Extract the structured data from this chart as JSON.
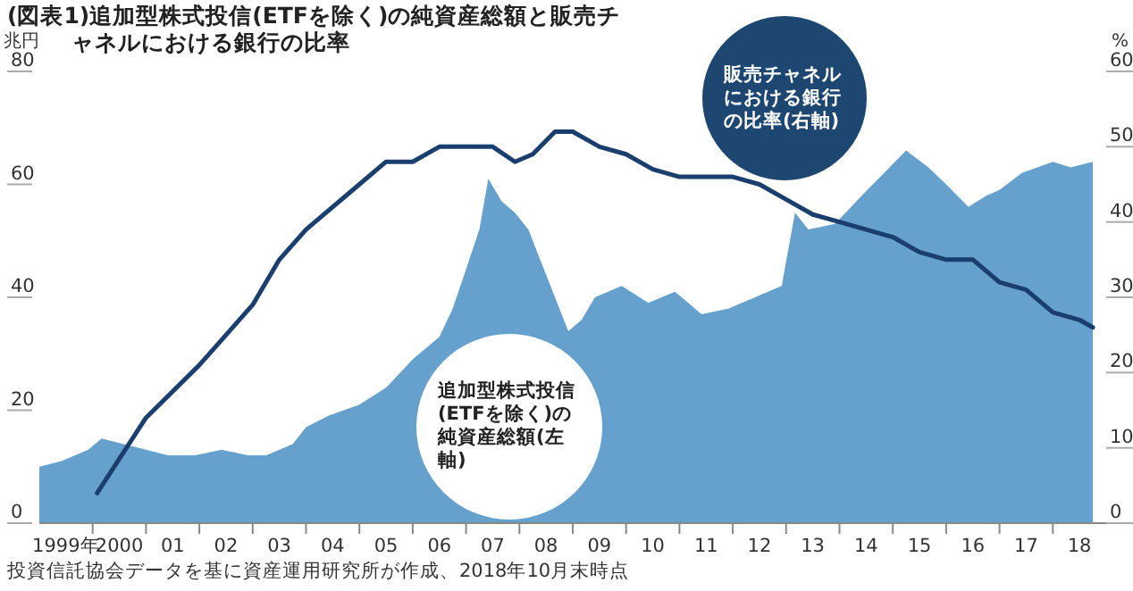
{
  "chart_data": {
    "type": "area",
    "title": "(図表1)追加型株式投信(ETFを除く)の純資産総額と販売チャネルにおける銀行の比率",
    "ylabel": "兆円",
    "y2label": "%",
    "annotations": [
      "投資信託協会データを基に資産運用研究所が作成、2018年10月末時点"
    ],
    "xlim": [
      "1999-01",
      "2019-01"
    ],
    "xticks": [
      {
        "value": "1999-07",
        "label": "1999年"
      },
      {
        "value": "2000-01",
        "label": null
      },
      {
        "value": "2000-07",
        "label": "2000"
      },
      {
        "value": "2001-01",
        "label": null
      },
      {
        "value": "2001-07",
        "label": "01"
      },
      {
        "value": "2002-01",
        "label": null
      },
      {
        "value": "2002-07",
        "label": "02"
      },
      {
        "value": "2003-01",
        "label": null
      },
      {
        "value": "2003-07",
        "label": "03"
      },
      {
        "value": "2004-01",
        "label": null
      },
      {
        "value": "2004-07",
        "label": "04"
      },
      {
        "value": "2005-01",
        "label": null
      },
      {
        "value": "2005-07",
        "label": "05"
      },
      {
        "value": "2006-01",
        "label": null
      },
      {
        "value": "2006-07",
        "label": "06"
      },
      {
        "value": "2007-01",
        "label": null
      },
      {
        "value": "2007-07",
        "label": "07"
      },
      {
        "value": "2008-01",
        "label": null
      },
      {
        "value": "2008-07",
        "label": "08"
      },
      {
        "value": "2009-01",
        "label": null
      },
      {
        "value": "2009-07",
        "label": "09"
      },
      {
        "value": "2010-01",
        "label": null
      },
      {
        "value": "2010-07",
        "label": "10"
      },
      {
        "value": "2011-01",
        "label": null
      },
      {
        "value": "2011-07",
        "label": "11"
      },
      {
        "value": "2012-01",
        "label": null
      },
      {
        "value": "2012-07",
        "label": "12"
      },
      {
        "value": "2013-01",
        "label": null
      },
      {
        "value": "2013-07",
        "label": "13"
      },
      {
        "value": "2014-01",
        "label": null
      },
      {
        "value": "2014-07",
        "label": "14"
      },
      {
        "value": "2015-01",
        "label": null
      },
      {
        "value": "2015-07",
        "label": "15"
      },
      {
        "value": "2016-01",
        "label": null
      },
      {
        "value": "2016-07",
        "label": "16"
      },
      {
        "value": "2017-01",
        "label": null
      },
      {
        "value": "2017-07",
        "label": "17"
      },
      {
        "value": "2018-01",
        "label": null
      },
      {
        "value": "2018-07",
        "label": "18"
      }
    ],
    "ylim": [
      0,
      80
    ],
    "yticks": [
      0,
      20,
      40,
      60,
      80
    ],
    "y2lim": [
      0,
      60
    ],
    "y2ticks": [
      0,
      10,
      20,
      30,
      40,
      50,
      60
    ],
    "series": [
      {
        "name": "追加型株式投信(ETFを除く)の純資産総額(左軸)",
        "color": "#66a0cc",
        "x": [
          "1999-01",
          "1999-06",
          "1999-12",
          "2000-03",
          "2000-08",
          "2001-01",
          "2001-06",
          "2001-12",
          "2002-06",
          "2002-12",
          "2003-04",
          "2003-10",
          "2004-01",
          "2004-06",
          "2005-01",
          "2005-07",
          "2006-01",
          "2006-07",
          "2006-10",
          "2007-01",
          "2007-04",
          "2007-06",
          "2007-09",
          "2007-12",
          "2008-03",
          "2008-06",
          "2008-09",
          "2008-12",
          "2009-03",
          "2009-06",
          "2009-12",
          "2010-06",
          "2010-12",
          "2011-06",
          "2011-12",
          "2012-06",
          "2012-12",
          "2013-03",
          "2013-06",
          "2013-12",
          "2014-06",
          "2015-04",
          "2015-09",
          "2016-01",
          "2016-06",
          "2016-10",
          "2017-01",
          "2017-06",
          "2018-01",
          "2018-05",
          "2018-10"
        ],
        "values": [
          10,
          11,
          13,
          15,
          14,
          13,
          12,
          12,
          13,
          12,
          12,
          14,
          17,
          19,
          21,
          24,
          29,
          33,
          38,
          45,
          52,
          61,
          57,
          55,
          52,
          46,
          40,
          34,
          36,
          40,
          42,
          39,
          41,
          37,
          38,
          40,
          42,
          55,
          52,
          53,
          58,
          66,
          63,
          60,
          56,
          58,
          59,
          62,
          64,
          63,
          64
        ]
      },
      {
        "name": "販売チャネルにおける銀行の比率(右軸)",
        "type": "line",
        "axis": "y2",
        "color": "#1a3f6e",
        "x": [
          "2000-02",
          "2001-01",
          "2002-01",
          "2003-01",
          "2003-07",
          "2004-01",
          "2005-01",
          "2005-07",
          "2006-01",
          "2006-07",
          "2007-01",
          "2007-07",
          "2007-12",
          "2008-04",
          "2008-09",
          "2009-01",
          "2009-07",
          "2010-01",
          "2010-07",
          "2011-01",
          "2011-07",
          "2012-01",
          "2012-07",
          "2013-01",
          "2013-07",
          "2014-01",
          "2014-07",
          "2015-01",
          "2015-07",
          "2016-01",
          "2016-07",
          "2017-01",
          "2017-07",
          "2018-01",
          "2018-07",
          "2018-10"
        ],
        "values": [
          4,
          14,
          21,
          29,
          35,
          39,
          45,
          48,
          48,
          50,
          50,
          50,
          48,
          49,
          52,
          52,
          50,
          49,
          47,
          46,
          46,
          46,
          45,
          43,
          41,
          40,
          39,
          38,
          36,
          35,
          35,
          32,
          31,
          28,
          27,
          26
        ]
      }
    ]
  }
}
